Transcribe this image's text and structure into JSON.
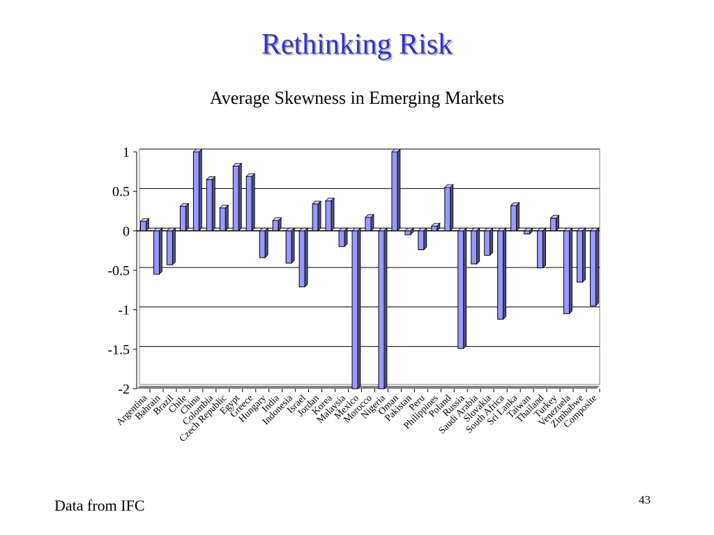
{
  "slide": {
    "title": "Rethinking Risk",
    "footer": "Data from IFC",
    "page_number": "43"
  },
  "chart_data": {
    "type": "bar",
    "title": "Average Skewness in Emerging Markets",
    "xlabel": "",
    "ylabel": "",
    "ylim": [
      -2,
      1
    ],
    "yticks": [
      1,
      0.5,
      0,
      -0.5,
      -1,
      -1.5,
      -2
    ],
    "grid": true,
    "bar_color": "#9999ff",
    "categories": [
      "Argentina",
      "Bahrain",
      "Brazil",
      "Chile",
      "China",
      "Colombia",
      "Czech Republic",
      "Egypt",
      "Greece",
      "Hungary",
      "India",
      "Indonesia",
      "Israel",
      "Jordan",
      "Korea",
      "Malaysia",
      "Mexico",
      "Morocco",
      "Nigeria",
      "Oman",
      "Pakistan",
      "Peru",
      "Philippines",
      "Poland",
      "Russia",
      "Saudi Arabia",
      "Slovakia",
      "South Africa",
      "Sri Lanka",
      "Taiwan",
      "Thailand",
      "Turkey",
      "Venezuela",
      "Zimbabwe",
      "Composite"
    ],
    "values": [
      0.12,
      -0.55,
      -0.43,
      0.31,
      1.0,
      0.65,
      0.29,
      0.82,
      0.69,
      -0.34,
      0.13,
      -0.41,
      -0.71,
      0.34,
      0.38,
      -0.2,
      -2.0,
      0.17,
      -2.0,
      1.0,
      -0.05,
      -0.24,
      0.06,
      0.55,
      -1.49,
      -0.42,
      -0.31,
      -1.12,
      0.32,
      -0.04,
      -0.47,
      0.16,
      -1.05,
      -0.65,
      -0.95
    ]
  }
}
